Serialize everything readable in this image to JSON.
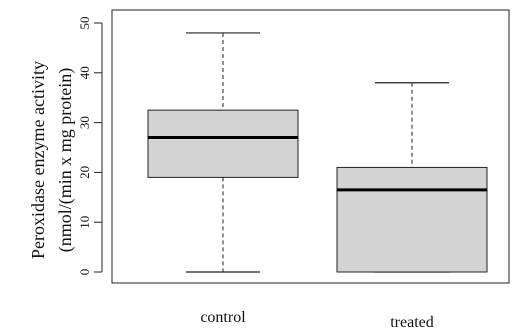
{
  "chart_data": {
    "type": "boxplot",
    "title": "",
    "xlabel": "",
    "ylabel": [
      "Peroxidase enzyme activity",
      "(nmol/(min x mg protein)"
    ],
    "ylim": [
      0,
      50
    ],
    "yticks": [
      0,
      10,
      20,
      30,
      40,
      50
    ],
    "categories": [
      "control",
      "treated"
    ],
    "boxes": [
      {
        "category": "control",
        "min": 0,
        "q1": 19,
        "median": 27,
        "q3": 32.5,
        "max": 48
      },
      {
        "category": "treated",
        "min": 0,
        "q1": 0,
        "median": 16.5,
        "q3": 21,
        "max": 38
      }
    ],
    "grid": false,
    "colors": {
      "box_fill": "#d3d3d3",
      "stroke": "#222222",
      "median": "#000000"
    }
  }
}
